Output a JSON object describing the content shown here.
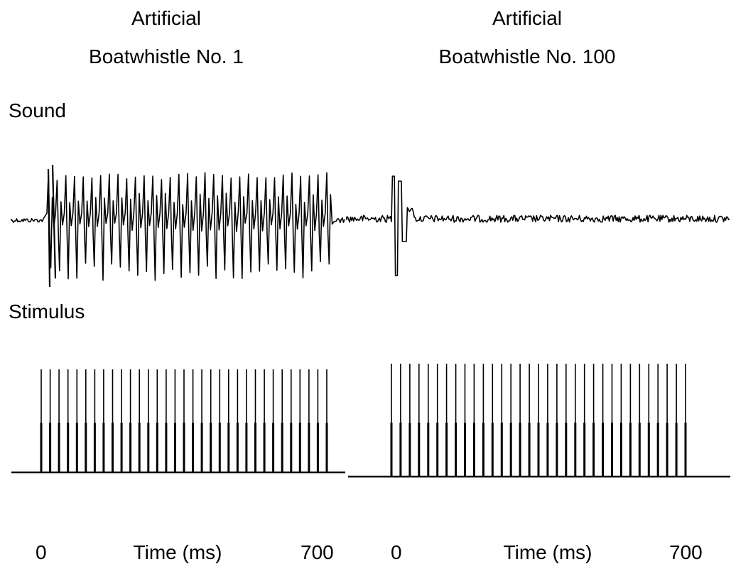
{
  "panels": [
    {
      "title_line1": "Artificial",
      "title_line2": "Boatwhistle  No. 1",
      "x_start": "0",
      "x_label": "Time (ms)",
      "x_end": "700",
      "sound_type": "periodic-oscillation",
      "stimulus_pulse_count": 33
    },
    {
      "title_line1": "Artificial",
      "title_line2": "Boatwhistle  No. 100",
      "x_start": "0",
      "x_label": "Time (ms)",
      "x_end": "700",
      "sound_type": "single-transient-then-noise",
      "stimulus_pulse_count": 33
    }
  ],
  "rows": {
    "sound_label": "Sound",
    "stimulus_label": "Stimulus"
  },
  "colors": {
    "trace": "#000000",
    "background": "#ffffff"
  }
}
